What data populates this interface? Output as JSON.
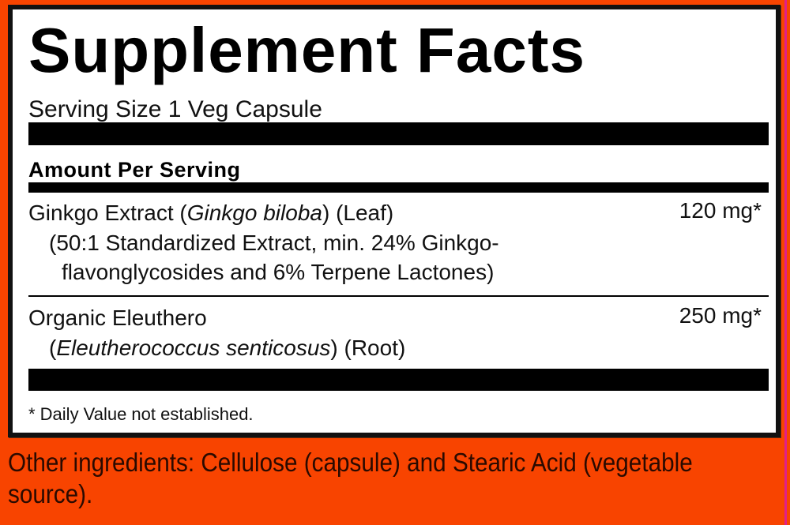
{
  "title": "Supplement Facts",
  "serving_size": "Serving Size 1 Veg Capsule",
  "amount_per_serving": "Amount Per Serving",
  "ingredients": [
    {
      "name": "Ginkgo Extract (",
      "latin": "Ginkgo biloba",
      "name_end": ") (Leaf)",
      "detail1": "(50:1 Standardized Extract, min. 24% Ginkgo-",
      "detail2": "flavonglycosides and 6% Terpene Lactones)",
      "amount": "120 mg*"
    },
    {
      "name": "Organic Eleuthero",
      "detail_open": "(",
      "latin": "Eleutherococcus senticosus",
      "detail_close": ") (Root)",
      "amount": "250 mg*"
    }
  ],
  "footnote": "* Daily Value not established.",
  "other_ingredients": "Other ingredients: Cellulose (capsule) and Stearic Acid (vegetable source).",
  "colors": {
    "background": "#f84400",
    "panel": "#ffffff",
    "rule": "#000000"
  }
}
